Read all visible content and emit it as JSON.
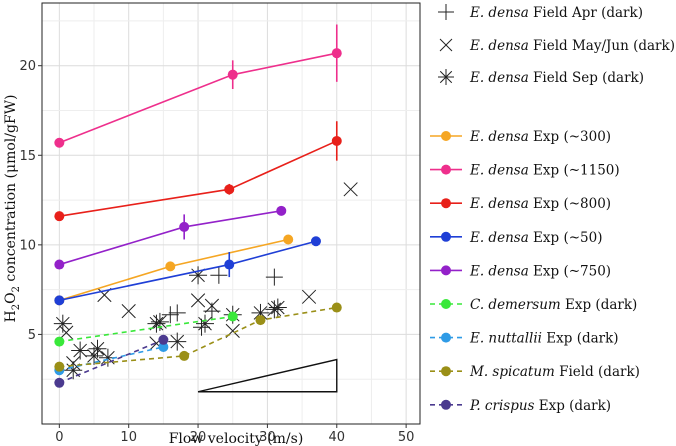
{
  "chart_data": {
    "type": "scatter",
    "title": "",
    "xlabel": "Flow velocity (m/s)",
    "ylabel_main": "H",
    "ylabel_sub1": "2",
    "ylabel_mid": "O",
    "ylabel_sub2": "2",
    "ylabel_rest": " concentration (μmol/gFW)",
    "xlim": [
      -2.5,
      52
    ],
    "ylim": [
      0,
      23.5
    ],
    "xticks": [
      0,
      10,
      20,
      30,
      40,
      50
    ],
    "yticks": [
      5,
      10,
      15,
      20
    ],
    "xtick_labels": [
      "0",
      "10",
      "20",
      "30",
      "40",
      "50"
    ],
    "ytick_labels": [
      "5",
      "10",
      "15",
      "20"
    ],
    "grid": true,
    "legend_position": "right",
    "series": [
      {
        "id": "apr",
        "name_italic": "E. densa",
        "name_rest": " Field Apr (dark)",
        "marker": "plus",
        "color": "#222222",
        "line": "none",
        "x": [
          16,
          17,
          20.5,
          22,
          23,
          31
        ],
        "y": [
          6.1,
          6.2,
          5.4,
          6.3,
          8.3,
          8.2
        ]
      },
      {
        "id": "mayjun",
        "name_italic": "E. densa",
        "name_rest": " Field May/Jun (dark)",
        "marker": "x",
        "color": "#222222",
        "line": "none",
        "x": [
          1,
          2,
          6.5,
          10,
          14,
          20,
          22,
          25,
          36,
          42
        ],
        "y": [
          5.1,
          3.4,
          7.2,
          6.3,
          4.5,
          6.9,
          6.6,
          5.2,
          7.1,
          13.1
        ]
      },
      {
        "id": "sep",
        "name_italic": "E. densa",
        "name_rest": " Field Sep (dark)",
        "marker": "star",
        "color": "#222222",
        "line": "none",
        "x": [
          0.5,
          2,
          3,
          5,
          5.5,
          7,
          14,
          14.5,
          17,
          20,
          25,
          29,
          31,
          31.5,
          21
        ],
        "y": [
          5.6,
          3.0,
          4.1,
          3.8,
          4.2,
          3.7,
          5.6,
          5.7,
          4.6,
          8.3,
          6.1,
          6.2,
          6.4,
          6.5,
          5.6
        ]
      },
      {
        "id": "exp300",
        "name_italic": "E. densa",
        "name_rest": " Exp (~300)",
        "marker": "dot",
        "color": "#f5a623",
        "line": "solid",
        "x": [
          0,
          16,
          33
        ],
        "y": [
          6.9,
          8.8,
          10.3
        ],
        "err": [
          0,
          0,
          0
        ]
      },
      {
        "id": "exp1150",
        "name_italic": "E. densa",
        "name_rest": " Exp (~1150)",
        "marker": "dot",
        "color": "#ee2f8c",
        "line": "solid",
        "x": [
          0,
          25,
          40
        ],
        "y": [
          15.7,
          19.5,
          20.7
        ],
        "err": [
          0,
          0.8,
          1.6
        ]
      },
      {
        "id": "exp800",
        "name_italic": "E. densa",
        "name_rest": " Exp (~800)",
        "marker": "dot",
        "color": "#e8201a",
        "line": "solid",
        "x": [
          0,
          24.5,
          40
        ],
        "y": [
          11.6,
          13.1,
          15.8
        ],
        "err": [
          0,
          0.3,
          1.1
        ]
      },
      {
        "id": "exp50",
        "name_italic": "E. densa",
        "name_rest": " Exp (~50)",
        "marker": "dot",
        "color": "#1f3fd6",
        "line": "solid",
        "x": [
          0,
          24.5,
          37
        ],
        "y": [
          6.9,
          8.9,
          10.2
        ],
        "err": [
          0,
          0.7,
          0
        ]
      },
      {
        "id": "exp750",
        "name_italic": "E. densa",
        "name_rest": " Exp (~750)",
        "marker": "dot",
        "color": "#9321c9",
        "line": "solid",
        "x": [
          0,
          18,
          32
        ],
        "y": [
          8.9,
          11.0,
          11.9
        ],
        "err": [
          0,
          0.7,
          0
        ]
      },
      {
        "id": "cdem",
        "name_italic": "C. demersum",
        "name_rest": " Exp (dark)",
        "marker": "dot",
        "color": "#39e83a",
        "line": "dashed",
        "x": [
          0,
          25
        ],
        "y": [
          4.6,
          6.0
        ],
        "err": [
          0,
          0
        ]
      },
      {
        "id": "enut",
        "name_italic": "E. nuttallii",
        "name_rest": " Exp (dark)",
        "marker": "dot",
        "color": "#2f9be6",
        "line": "dashed",
        "x": [
          0,
          15
        ],
        "y": [
          3.0,
          4.3
        ],
        "err": [
          0,
          0
        ]
      },
      {
        "id": "mspi",
        "name_italic": "M. spicatum",
        "name_rest": " Field (dark)",
        "marker": "dot",
        "color": "#9a8f17",
        "line": "dashed",
        "x": [
          0,
          18,
          29,
          40
        ],
        "y": [
          3.2,
          3.8,
          5.8,
          6.5
        ],
        "err": [
          0,
          0,
          0,
          0
        ]
      },
      {
        "id": "pcri",
        "name_italic": "P. crispus",
        "name_rest": " Exp (dark)",
        "marker": "dot",
        "color": "#4b3a8f",
        "line": "dashed",
        "x": [
          0,
          15
        ],
        "y": [
          2.3,
          4.7
        ],
        "err": [
          0,
          0
        ]
      }
    ],
    "annotation_triangle": {
      "vertices": [
        [
          20,
          1.8
        ],
        [
          40,
          1.8
        ],
        [
          40,
          3.6
        ]
      ]
    }
  }
}
